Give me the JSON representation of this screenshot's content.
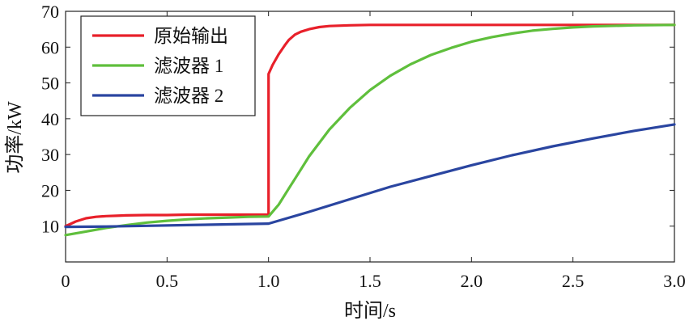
{
  "chart_data": {
    "type": "line",
    "title": "",
    "xlabel": "时间/s",
    "ylabel": "功率/kW",
    "xlim": [
      0,
      3.0
    ],
    "ylim": [
      0,
      70
    ],
    "x_ticks": [
      0,
      0.5,
      1.0,
      1.5,
      2.0,
      2.5,
      3.0
    ],
    "x_tick_labels": [
      "0",
      "0.5",
      "1.0",
      "1.5",
      "2.0",
      "2.5",
      "3.0"
    ],
    "y_ticks": [
      10,
      20,
      30,
      40,
      50,
      60,
      70
    ],
    "y_tick_labels": [
      "10",
      "20",
      "30",
      "40",
      "50",
      "60",
      "70"
    ],
    "grid": false,
    "legend_position": "top-left",
    "series": [
      {
        "name": "原始输出",
        "color": "#e8202a",
        "x": [
          0,
          0.02,
          0.05,
          0.1,
          0.15,
          0.2,
          0.25,
          0.3,
          0.4,
          0.5,
          0.6,
          0.7,
          0.8,
          0.9,
          0.995,
          1.0,
          1.0,
          1.02,
          1.05,
          1.08,
          1.1,
          1.13,
          1.16,
          1.2,
          1.25,
          1.3,
          1.4,
          1.5,
          1.7,
          2.0,
          2.5,
          3.0
        ],
        "y": [
          10.0,
          10.5,
          11.3,
          12.2,
          12.6,
          12.8,
          12.9,
          13.0,
          13.1,
          13.1,
          13.2,
          13.2,
          13.2,
          13.2,
          13.2,
          13.2,
          52.5,
          55.0,
          58.0,
          60.5,
          62.0,
          63.5,
          64.3,
          65.0,
          65.6,
          65.9,
          66.1,
          66.2,
          66.2,
          66.2,
          66.2,
          66.2
        ]
      },
      {
        "name": "滤波器 1",
        "color": "#5fbf3c",
        "x": [
          0,
          0.1,
          0.2,
          0.3,
          0.4,
          0.5,
          0.6,
          0.7,
          0.8,
          0.9,
          1.0,
          1.05,
          1.1,
          1.15,
          1.2,
          1.3,
          1.4,
          1.5,
          1.6,
          1.7,
          1.8,
          1.9,
          2.0,
          2.1,
          2.2,
          2.3,
          2.4,
          2.5,
          2.6,
          2.8,
          3.0
        ],
        "y": [
          7.5,
          8.5,
          9.5,
          10.3,
          11.0,
          11.5,
          11.9,
          12.2,
          12.4,
          12.6,
          12.7,
          16.0,
          20.5,
          25.0,
          29.5,
          37.0,
          43.0,
          48.0,
          52.0,
          55.2,
          57.8,
          59.8,
          61.5,
          62.8,
          63.8,
          64.6,
          65.1,
          65.5,
          65.8,
          66.1,
          66.2
        ]
      },
      {
        "name": "滤波器 2",
        "color": "#2a45a0",
        "x": [
          0,
          0.2,
          0.4,
          0.6,
          0.8,
          1.0,
          1.2,
          1.4,
          1.6,
          1.8,
          2.0,
          2.2,
          2.4,
          2.6,
          2.8,
          3.0
        ],
        "y": [
          9.8,
          9.9,
          10.1,
          10.3,
          10.5,
          10.7,
          14.0,
          17.5,
          21.0,
          24.0,
          27.0,
          29.8,
          32.3,
          34.5,
          36.6,
          38.4
        ]
      }
    ]
  }
}
